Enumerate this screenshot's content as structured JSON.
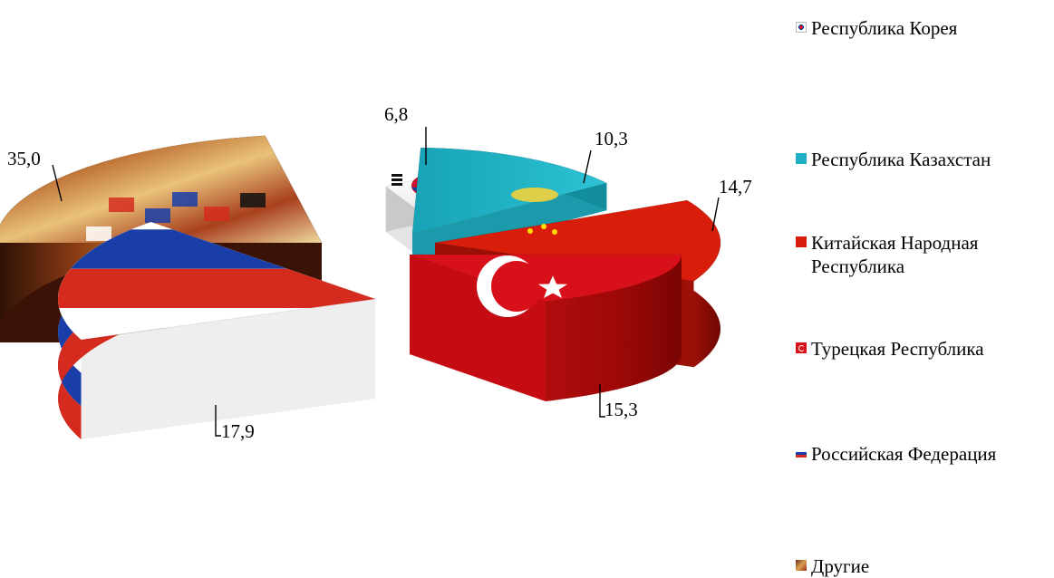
{
  "chart_data": {
    "type": "pie",
    "style": "3d-exploded",
    "categories": [
      "Республика Корея",
      "Республика Казахстан",
      "Китайская Народная Республика",
      "Турецкая Республика",
      "Российская Федерация",
      "Другие"
    ],
    "values": [
      6.8,
      10.3,
      14.7,
      15.3,
      17.9,
      35.0
    ],
    "data_labels": [
      "6,8",
      "10,3",
      "14,7",
      "15,3",
      "17,9",
      "35,0"
    ],
    "legend_placement": "right",
    "fills": {
      "korea": "#ffffff",
      "kazakhstan": "#1fb0c3",
      "china": "#d81e0a",
      "turkey": "#d8101a",
      "russia_white": "#ffffff",
      "russia_blue": "#1a3ea8",
      "russia_red": "#d52b1e",
      "other": "#c98a3a"
    }
  },
  "legend": {
    "items": [
      {
        "label": "Республика Корея",
        "icon": "korea-flag-icon"
      },
      {
        "label": "Республика Казахстан",
        "icon": "kazakhstan-flag-icon"
      },
      {
        "label": "Китайская Народная Республика",
        "icon": "china-flag-icon"
      },
      {
        "label": "Турецкая Республика",
        "icon": "turkey-flag-icon"
      },
      {
        "label": "Российская Федерация",
        "icon": "russia-flag-icon"
      },
      {
        "label": "Другие",
        "icon": "world-flags-icon"
      }
    ]
  }
}
